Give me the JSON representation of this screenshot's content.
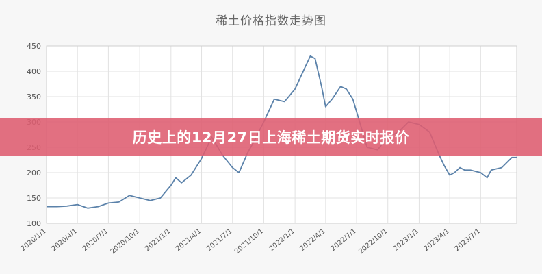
{
  "chart_data": {
    "type": "line",
    "title": "稀土价格指数走势图",
    "xlabel": "",
    "ylabel": "",
    "ylim": [
      100,
      450
    ],
    "yticks": [
      100,
      150,
      200,
      250,
      300,
      350,
      400,
      450
    ],
    "xlim": [
      "2020-01-01",
      "2023-10-15"
    ],
    "xticks": [
      "2020/1/1",
      "2020/4/1",
      "2020/7/1",
      "2020/10/1",
      "2021/1/1",
      "2021/4/1",
      "2021/7/1",
      "2021/10/1",
      "2022/1/1",
      "2022/4/1",
      "2022/7/1",
      "2022/10/1",
      "2023/1/1",
      "2023/4/1",
      "2023/7/1"
    ],
    "grid": true,
    "series_color": "#5b82aa",
    "series": [
      {
        "x": [
          "2020-01-01",
          "2020-02-01",
          "2020-03-01",
          "2020-04-01",
          "2020-05-01",
          "2020-06-01",
          "2020-07-01",
          "2020-08-01",
          "2020-09-01",
          "2020-10-01",
          "2020-11-01",
          "2020-12-01",
          "2021-01-01",
          "2021-01-15",
          "2021-02-01",
          "2021-03-01",
          "2021-03-15",
          "2021-04-01",
          "2021-05-01",
          "2021-06-01",
          "2021-07-01",
          "2021-07-20",
          "2021-08-15",
          "2021-09-01",
          "2021-10-01",
          "2021-11-01",
          "2021-12-01",
          "2022-01-01",
          "2022-02-01",
          "2022-02-15",
          "2022-03-01",
          "2022-03-20",
          "2022-04-01",
          "2022-04-20",
          "2022-05-15",
          "2022-06-01",
          "2022-06-20",
          "2022-07-10",
          "2022-08-01",
          "2022-09-01",
          "2022-10-01",
          "2022-11-01",
          "2022-12-01",
          "2023-01-01",
          "2023-02-01",
          "2023-03-01",
          "2023-03-15",
          "2023-04-01",
          "2023-04-15",
          "2023-05-01",
          "2023-05-15",
          "2023-06-01",
          "2023-07-01",
          "2023-07-20",
          "2023-08-01",
          "2023-09-01",
          "2023-10-01",
          "2023-10-15"
        ],
        "values": [
          133,
          133,
          134,
          137,
          130,
          133,
          140,
          142,
          155,
          150,
          145,
          150,
          175,
          190,
          180,
          195,
          210,
          228,
          270,
          235,
          210,
          200,
          240,
          260,
          300,
          345,
          340,
          365,
          410,
          430,
          425,
          370,
          330,
          345,
          370,
          365,
          345,
          300,
          250,
          245,
          270,
          280,
          300,
          295,
          280,
          235,
          215,
          195,
          200,
          210,
          205,
          205,
          200,
          190,
          205,
          210,
          230,
          230
        ]
      }
    ]
  },
  "overlay": {
    "banner_text": "历史上的12月27日上海稀土期货实时报价"
  }
}
